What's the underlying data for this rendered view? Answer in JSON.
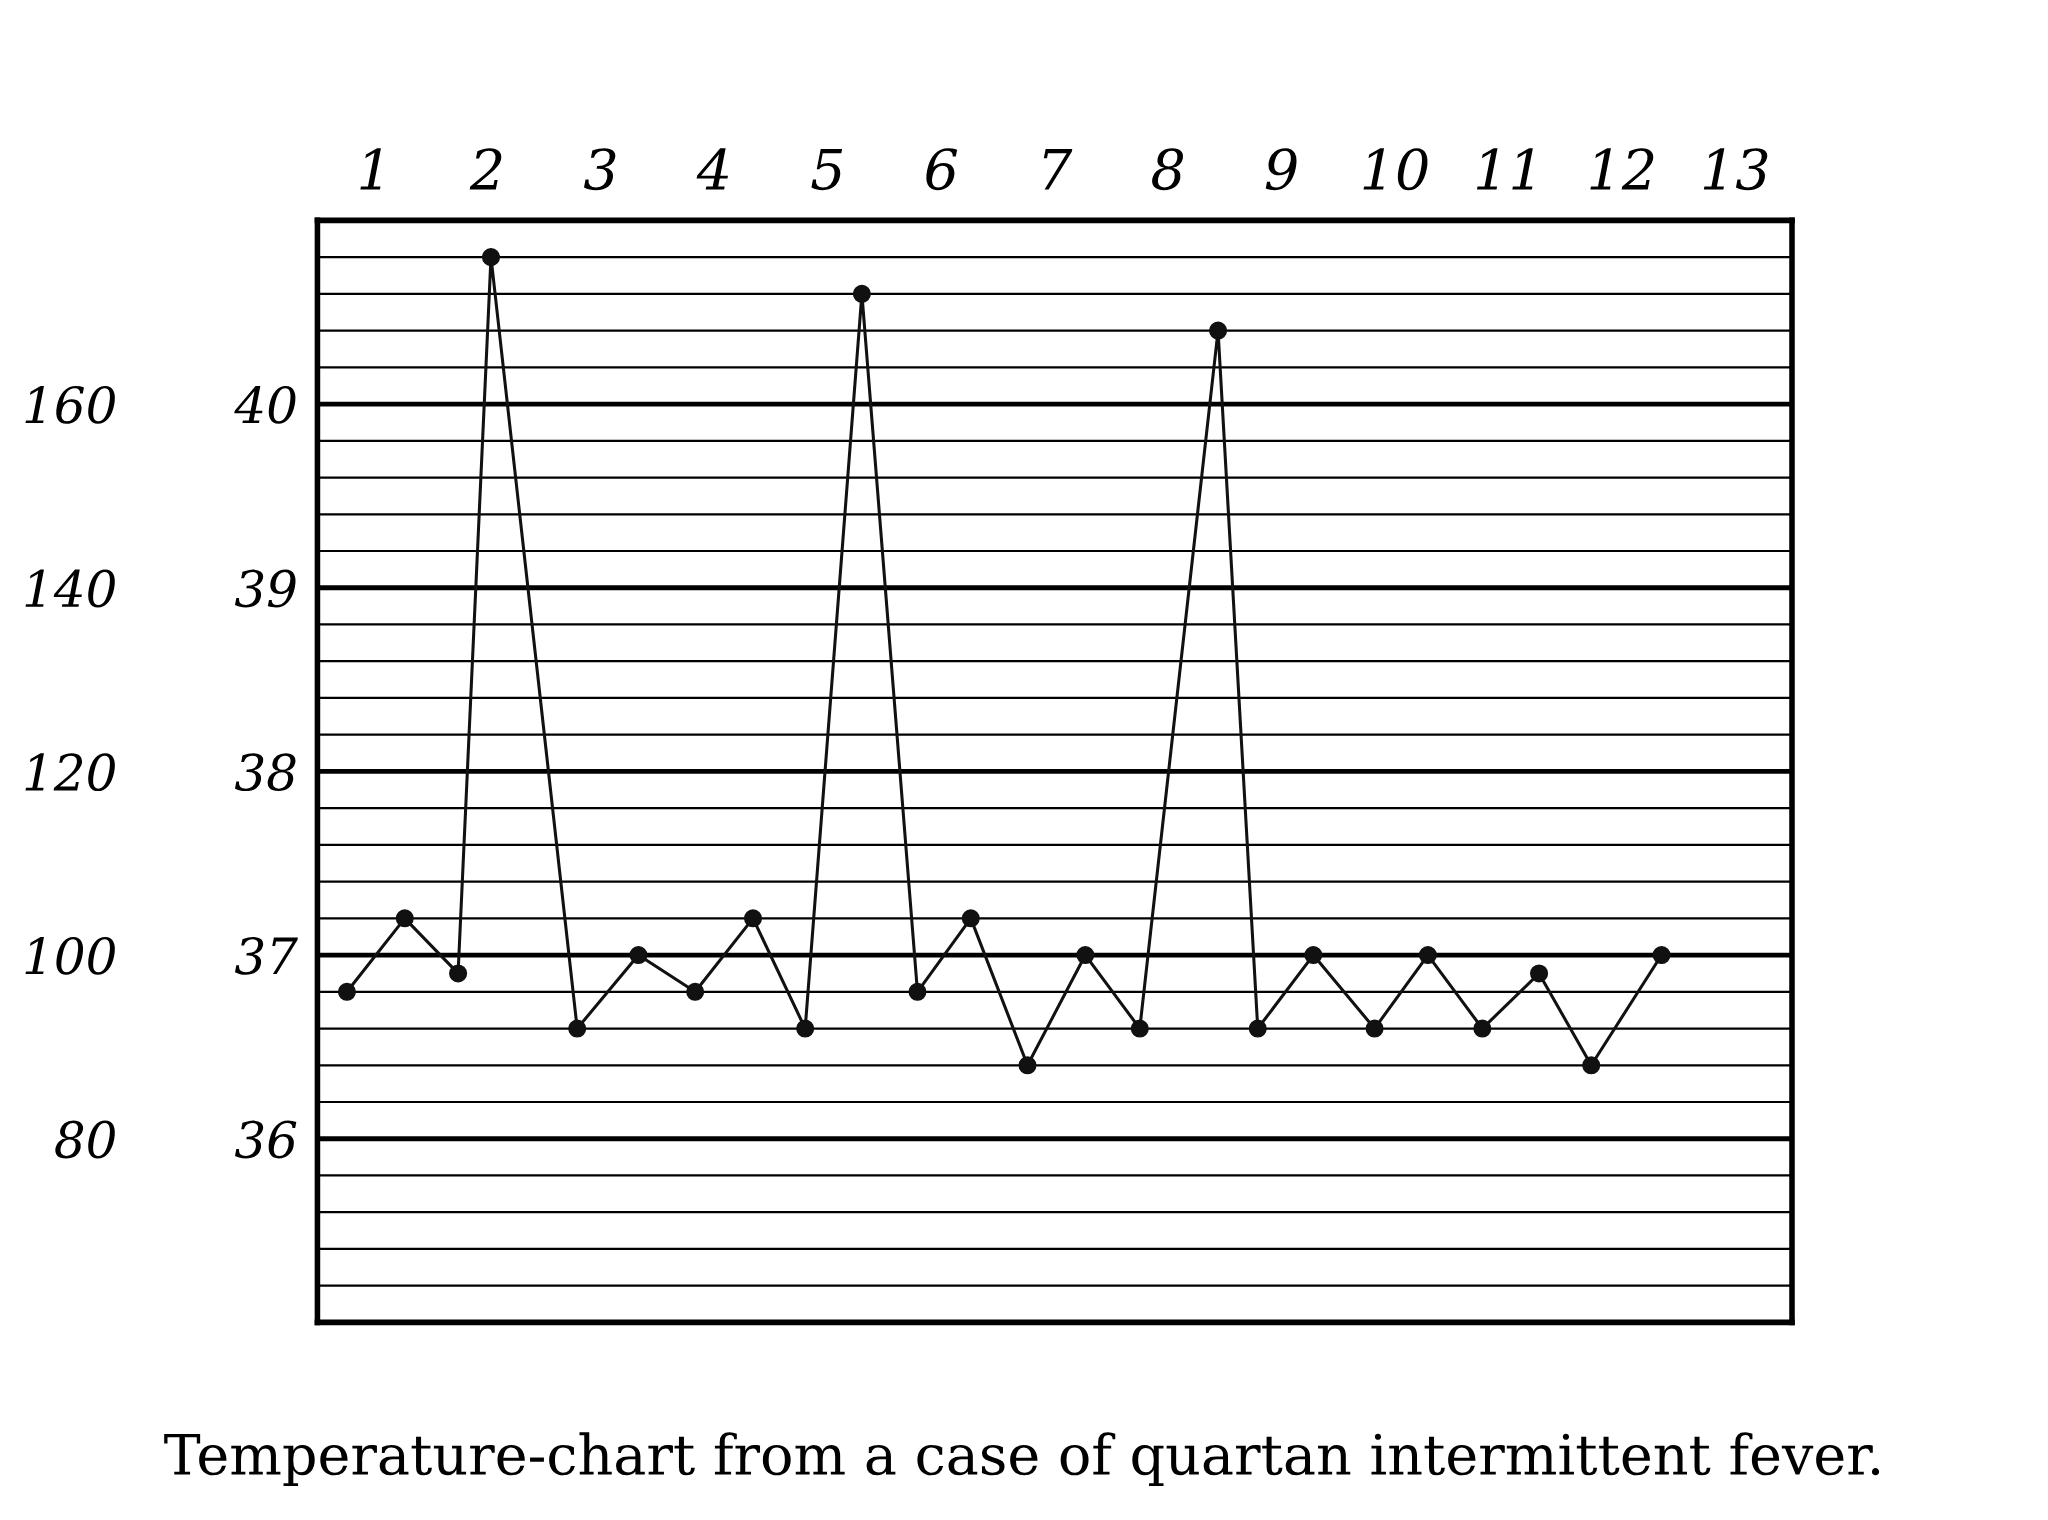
{
  "chart_data": {
    "type": "line",
    "x": [
      0.76,
      1.27,
      1.74,
      2.03,
      2.79,
      3.33,
      3.83,
      4.34,
      4.8,
      5.3,
      5.79,
      6.26,
      6.76,
      7.27,
      7.75,
      8.44,
      8.79,
      9.28,
      9.82,
      10.29,
      10.77,
      11.27,
      11.73,
      12.35
    ],
    "series": [
      {
        "color": "#111111",
        "values": [
          36.8,
          37.2,
          36.9,
          40.8,
          36.6,
          37.0,
          36.8,
          37.2,
          36.6,
          40.6,
          36.8,
          37.2,
          36.4,
          37.0,
          36.6,
          40.4,
          36.6,
          37.0,
          36.6,
          37.0,
          36.6,
          36.9,
          36.4,
          37.0
        ]
      }
    ],
    "xlim": [
      0.5,
      13.5
    ],
    "xticks": [
      1,
      2,
      3,
      4,
      5,
      6,
      7,
      8,
      9,
      10,
      11,
      12,
      13
    ],
    "ylim": [
      35,
      41
    ],
    "yticks": [
      36,
      37,
      38,
      39,
      40
    ],
    "y2lim": [
      60,
      180
    ],
    "y2ticks": [
      80,
      100,
      120,
      140,
      160
    ],
    "grid": true,
    "marker": "circle",
    "line_style": "solid",
    "annotations": [
      "Temperature-chart from a case of quartan intermittent fever."
    ]
  }
}
